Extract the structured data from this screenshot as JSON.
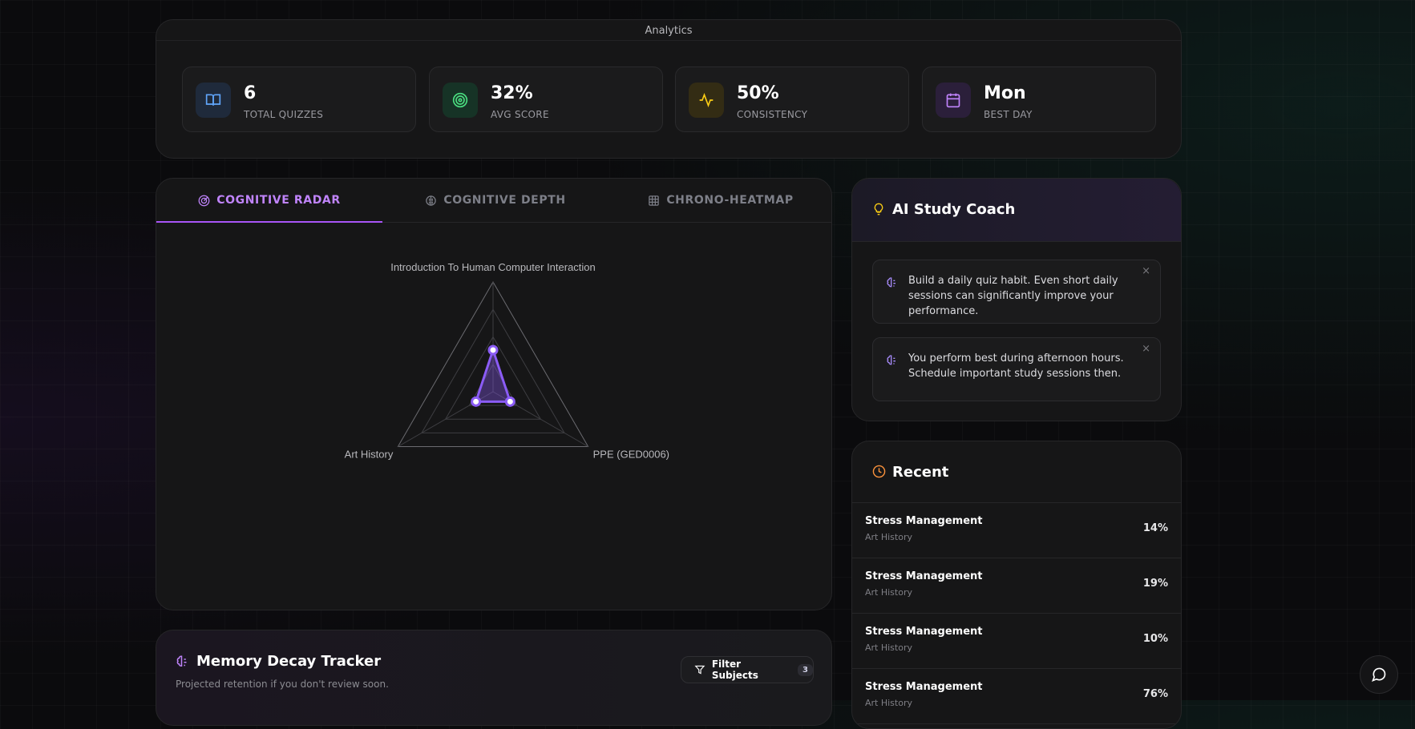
{
  "analytics": {
    "caption": "Analytics",
    "stats": [
      {
        "value": "6",
        "label": "TOTAL QUIZZES",
        "icon": "book-icon",
        "color": "#60a5fa"
      },
      {
        "value": "32%",
        "label": "AVG SCORE",
        "icon": "target-icon",
        "color": "#4ade80"
      },
      {
        "value": "50%",
        "label": "CONSISTENCY",
        "icon": "activity-icon",
        "color": "#facc15"
      },
      {
        "value": "Mon",
        "label": "BEST DAY",
        "icon": "calendar-icon",
        "color": "#c084fc"
      }
    ]
  },
  "chart_tabs": [
    {
      "label": "COGNITIVE RADAR",
      "icon": "radar-icon",
      "active": true
    },
    {
      "label": "COGNITIVE DEPTH",
      "icon": "brain-icon",
      "active": false
    },
    {
      "label": "CHRONO-HEATMAP",
      "icon": "grid-icon",
      "active": false
    }
  ],
  "chart_data": {
    "type": "radar",
    "axes": [
      "Introduction To Human Computer Interaction",
      "PPE (GED0006)",
      "Art History"
    ],
    "series": [
      {
        "values": [
          38,
          18,
          18
        ]
      }
    ],
    "rlim": [
      0,
      100
    ],
    "grid_levels": 4,
    "accent": "#8b5cf6"
  },
  "memory": {
    "title": "Memory Decay Tracker",
    "subtitle": "Projected retention if you don't review soon.",
    "filter_label": "Filter Subjects",
    "filter_count": "3"
  },
  "coach": {
    "title": "AI Study Coach",
    "tips": [
      {
        "text": "Build a daily quiz habit. Even short daily sessions can significantly improve your performance.",
        "close": "×"
      },
      {
        "text": "You perform best during afternoon hours. Schedule important study sessions then.",
        "close": "×"
      }
    ]
  },
  "recent": {
    "title": "Recent",
    "items": [
      {
        "name": "Stress Management",
        "subject": "Art History",
        "score": "14%"
      },
      {
        "name": "Stress Management",
        "subject": "Art History",
        "score": "19%"
      },
      {
        "name": "Stress Management",
        "subject": "Art History",
        "score": "10%"
      },
      {
        "name": "Stress Management",
        "subject": "Art History",
        "score": "76%"
      }
    ]
  },
  "colors": {
    "accent": "#a855f7",
    "coach_icon": "#facc15",
    "recent_icon": "#fb923c"
  }
}
